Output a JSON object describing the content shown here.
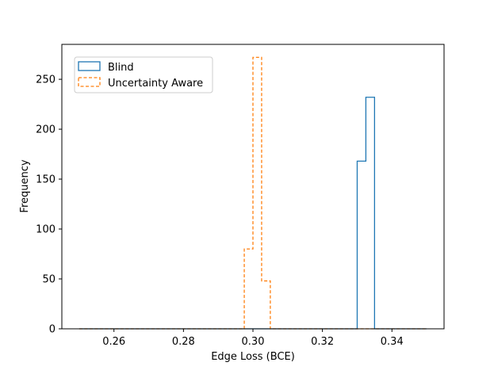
{
  "chart_data": {
    "type": "histogram",
    "xlabel": "Edge Loss (BCE)",
    "ylabel": "Frequency",
    "xlim": [
      0.245,
      0.355
    ],
    "ylim": [
      0,
      285
    ],
    "xticks": [
      0.26,
      0.28,
      0.3,
      0.32,
      0.34
    ],
    "xtick_labels": [
      "0.26",
      "0.28",
      "0.30",
      "0.32",
      "0.34"
    ],
    "yticks": [
      0,
      50,
      100,
      150,
      200,
      250
    ],
    "ytick_labels": [
      "0",
      "50",
      "100",
      "150",
      "200",
      "250"
    ],
    "grid": false,
    "legend_placement": "upper-left",
    "series": [
      {
        "name": "Blind",
        "color": "#1f77b4",
        "linestyle": "solid",
        "bin_edges": [
          0.25,
          0.2525,
          0.255,
          0.2575,
          0.26,
          0.2625,
          0.265,
          0.2675,
          0.27,
          0.2725,
          0.275,
          0.2775,
          0.28,
          0.2825,
          0.285,
          0.2875,
          0.29,
          0.2925,
          0.295,
          0.2975,
          0.3,
          0.3025,
          0.305,
          0.3075,
          0.31,
          0.3125,
          0.315,
          0.3175,
          0.32,
          0.3225,
          0.325,
          0.3275,
          0.33,
          0.3325,
          0.335,
          0.3375,
          0.34,
          0.3425,
          0.345,
          0.3475,
          0.35
        ],
        "counts": [
          0,
          0,
          0,
          0,
          0,
          0,
          0,
          0,
          0,
          0,
          0,
          0,
          0,
          0,
          0,
          0,
          0,
          0,
          0,
          0,
          0,
          0,
          0,
          0,
          0,
          0,
          0,
          0,
          0,
          0,
          0,
          0,
          168,
          232,
          0,
          0,
          0,
          0,
          0,
          0
        ]
      },
      {
        "name": "Uncertainty Aware",
        "color": "#ff7f0e",
        "linestyle": "dashed",
        "bin_edges": [
          0.25,
          0.2525,
          0.255,
          0.2575,
          0.26,
          0.2625,
          0.265,
          0.2675,
          0.27,
          0.2725,
          0.275,
          0.2775,
          0.28,
          0.2825,
          0.285,
          0.2875,
          0.29,
          0.2925,
          0.295,
          0.2975,
          0.3,
          0.3025,
          0.305,
          0.3075,
          0.31,
          0.3125,
          0.315,
          0.3175,
          0.32,
          0.3225,
          0.325,
          0.3275,
          0.33,
          0.3325,
          0.335,
          0.3375,
          0.34,
          0.3425,
          0.345,
          0.3475,
          0.35
        ],
        "counts": [
          0,
          0,
          0,
          0,
          0,
          0,
          0,
          0,
          0,
          0,
          0,
          0,
          0,
          0,
          0,
          0,
          0,
          0,
          0,
          80,
          272,
          48,
          0,
          0,
          0,
          0,
          0,
          0,
          0,
          0,
          0,
          0,
          0,
          0,
          0,
          0,
          0,
          0,
          0,
          0
        ]
      }
    ]
  }
}
